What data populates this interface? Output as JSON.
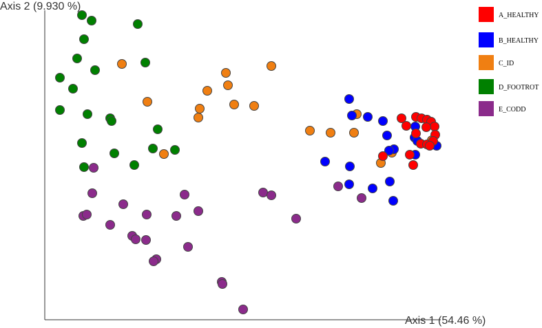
{
  "chart_data": {
    "type": "scatter",
    "x_label": "Axis 1 (54.46 %)",
    "y_label": "Axis 2 (9.930 %)",
    "xlim": [
      0,
      575
    ],
    "ylim": [
      0,
      450
    ],
    "series": [
      {
        "name": "A_HEALTHY",
        "color": "#ff0000",
        "x": [
          518,
          539,
          547,
          555,
          561,
          566,
          567,
          539,
          546,
          555,
          564,
          559,
          530,
          491,
          535,
          525,
          554
        ],
        "y": [
          293,
          295,
          293,
          291,
          288,
          281,
          269,
          271,
          256,
          255,
          260,
          253,
          240,
          238,
          225,
          282,
          280
        ]
      },
      {
        "name": "B_HEALTHY",
        "color": "#0000ff",
        "x": [
          442,
          446,
          469,
          491,
          497,
          507,
          500,
          538,
          537,
          541,
          569,
          538,
          407,
          443,
          501,
          442,
          476,
          506
        ],
        "y": [
          321,
          297,
          295,
          289,
          268,
          248,
          246,
          281,
          265,
          260,
          253,
          240,
          230,
          223,
          201,
          197,
          191,
          173
        ]
      },
      {
        "name": "C_ID",
        "color": "#f07f12",
        "x": [
          112,
          329,
          263,
          266,
          236,
          149,
          225,
          223,
          275,
          304,
          385,
          415,
          449,
          453,
          173,
          488,
          504,
          562
        ],
        "y": [
          372,
          369,
          359,
          341,
          333,
          317,
          307,
          294,
          313,
          311,
          275,
          272,
          272,
          299,
          241,
          228,
          243,
          261
        ]
      },
      {
        "name": "D_FOOTROT",
        "color": "#008000",
        "x": [
          54,
          68,
          135,
          57,
          47,
          73,
          146,
          22,
          41,
          22,
          62,
          95,
          97,
          164,
          54,
          157,
          189,
          101,
          130,
          57
        ],
        "y": [
          443,
          435,
          430,
          408,
          380,
          363,
          374,
          352,
          336,
          305,
          299,
          293,
          289,
          277,
          257,
          249,
          247,
          242,
          225,
          222
        ]
      },
      {
        "name": "E_CODD",
        "color": "#8b2b8b",
        "x": [
          71,
          69,
          114,
          56,
          61,
          148,
          191,
          223,
          203,
          95,
          127,
          132,
          147,
          208,
          162,
          158,
          317,
          329,
          365,
          426,
          460,
          257,
          258,
          288
        ],
        "y": [
          221,
          184,
          168,
          151,
          153,
          153,
          151,
          158,
          182,
          138,
          122,
          117,
          116,
          106,
          88,
          85,
          185,
          181,
          147,
          194,
          177,
          55,
          52,
          15
        ]
      }
    ]
  }
}
